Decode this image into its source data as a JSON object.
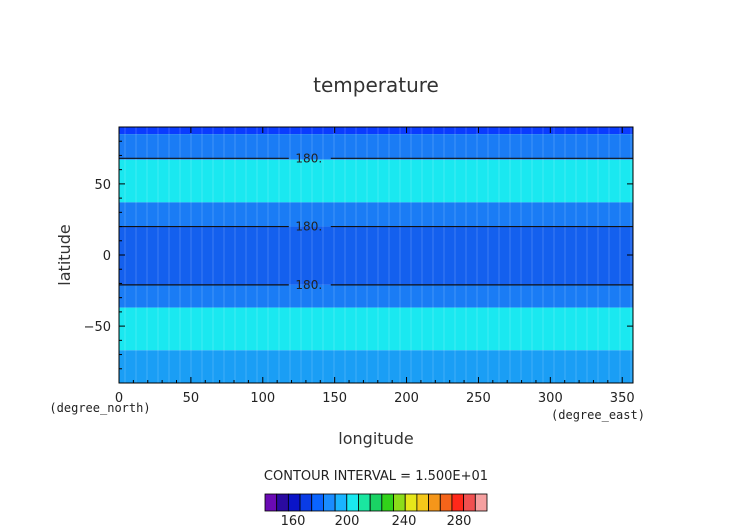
{
  "chart_data": {
    "type": "contour",
    "title": "temperature",
    "xlabel": "longitude",
    "ylabel": "latitude",
    "x_unit": "(degree_east)",
    "y_unit": "(degree_north)",
    "xlim": [
      0,
      357.5
    ],
    "ylim": [
      -90,
      90
    ],
    "x_ticks": [
      0,
      50,
      100,
      150,
      200,
      250,
      300,
      350
    ],
    "y_ticks": [
      -50,
      0,
      50
    ],
    "contour_interval_text": "CONTOUR INTERVAL = 1.500E+01",
    "contour_labels": [
      {
        "text": "180.",
        "lon": 132,
        "lat": 68
      },
      {
        "text": "180.",
        "lon": 132,
        "lat": 20
      },
      {
        "text": "180.",
        "lon": 132,
        "lat": -21
      }
    ],
    "bands": [
      {
        "lat_from": 85,
        "lat_to": 90,
        "level": "165-180",
        "color": "#0a3cff"
      },
      {
        "lat_from": 67,
        "lat_to": 85,
        "level": "180-195",
        "color": "#1a7cf5"
      },
      {
        "lat_from": 37,
        "lat_to": 67,
        "level": "195-210",
        "color": "#1ae8f0"
      },
      {
        "lat_from": 20,
        "lat_to": 37,
        "level": "180-195",
        "color": "#1a7cf5"
      },
      {
        "lat_from": -21,
        "lat_to": 20,
        "level": "165-180",
        "color": "#1460ee"
      },
      {
        "lat_from": -37,
        "lat_to": -21,
        "level": "180-195",
        "color": "#1a7cf5"
      },
      {
        "lat_from": -67,
        "lat_to": -37,
        "level": "195-210",
        "color": "#1ae8f0"
      },
      {
        "lat_from": -90,
        "lat_to": -67,
        "level": "180-195",
        "color": "#1a9ef5"
      }
    ],
    "colorbar": {
      "tick_labels": [
        "160",
        "200",
        "240",
        "280"
      ],
      "colors": [
        "#6a0ab4",
        "#2a0aa0",
        "#0a14c8",
        "#0a3ce6",
        "#0a64ff",
        "#1a8cff",
        "#1ab4ff",
        "#1ae8f0",
        "#1ae6a0",
        "#1ad264",
        "#32d21a",
        "#8cdc1a",
        "#e6e61a",
        "#f5c81a",
        "#f5961a",
        "#f5641a",
        "#ff281a",
        "#f05050",
        "#f5a0a0"
      ]
    }
  }
}
